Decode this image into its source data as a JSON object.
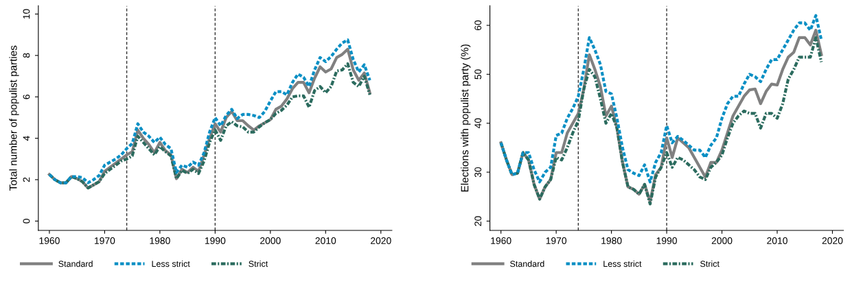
{
  "chart_data": [
    {
      "type": "line",
      "ylabel": "Total number of populist parties",
      "x": [
        1960,
        1961,
        1962,
        1963,
        1964,
        1965,
        1966,
        1967,
        1968,
        1969,
        1970,
        1971,
        1972,
        1973,
        1974,
        1975,
        1976,
        1977,
        1978,
        1979,
        1980,
        1981,
        1982,
        1983,
        1984,
        1985,
        1986,
        1987,
        1988,
        1989,
        1990,
        1991,
        1992,
        1993,
        1994,
        1995,
        1996,
        1997,
        1998,
        1999,
        2000,
        2001,
        2002,
        2003,
        2004,
        2005,
        2006,
        2007,
        2008,
        2009,
        2010,
        2011,
        2012,
        2013,
        2014,
        2015,
        2016,
        2017,
        2018
      ],
      "xlim": [
        1958,
        2022
      ],
      "xticks": [
        1960,
        1970,
        1980,
        1990,
        2000,
        2010,
        2020
      ],
      "ylim": [
        -0.45,
        10.4
      ],
      "yticks": [
        0,
        2,
        4,
        6,
        8,
        10
      ],
      "grid": false,
      "legend": "bottom left",
      "ref_lines": [
        {
          "axis": "x",
          "value": 1974,
          "color": "#333333",
          "line_style": "dashed"
        },
        {
          "axis": "x",
          "value": 1990,
          "color": "#333333",
          "line_style": "dashed"
        }
      ],
      "series": [
        {
          "name": "Standard",
          "color": "#808080",
          "line_style": "solid",
          "values": [
            2.25,
            2.0,
            1.85,
            1.85,
            2.15,
            2.05,
            1.9,
            1.6,
            1.75,
            1.9,
            2.4,
            2.6,
            2.8,
            3.0,
            3.2,
            3.35,
            4.4,
            4.0,
            3.7,
            3.3,
            3.8,
            3.4,
            3.2,
            2.05,
            2.5,
            2.35,
            2.6,
            2.4,
            3.2,
            4.0,
            4.7,
            4.3,
            5.0,
            5.3,
            4.85,
            4.85,
            4.6,
            4.4,
            4.6,
            4.75,
            4.9,
            5.4,
            5.55,
            5.9,
            6.4,
            6.7,
            6.7,
            6.2,
            6.9,
            7.45,
            7.2,
            7.35,
            7.9,
            8.05,
            8.3,
            7.3,
            6.8,
            7.15,
            6.2
          ]
        },
        {
          "name": "Less strict",
          "color": "#0a8fc4",
          "line_style": "dashed",
          "values": [
            2.25,
            2.0,
            1.85,
            1.85,
            2.15,
            2.15,
            2.1,
            1.85,
            2.0,
            2.2,
            2.7,
            2.85,
            3.0,
            3.2,
            3.5,
            3.75,
            4.7,
            4.3,
            4.1,
            3.8,
            4.05,
            3.7,
            3.5,
            2.35,
            2.7,
            2.6,
            2.85,
            2.7,
            3.3,
            4.3,
            5.0,
            4.6,
            5.1,
            5.4,
            4.95,
            5.15,
            5.15,
            5.1,
            5.0,
            5.3,
            5.8,
            6.25,
            6.25,
            6.1,
            6.7,
            7.1,
            6.95,
            6.5,
            7.3,
            7.9,
            7.7,
            7.95,
            8.3,
            8.6,
            8.75,
            7.8,
            7.2,
            7.55,
            6.8
          ]
        },
        {
          "name": "Strict",
          "color": "#2b6b5e",
          "line_style": "dashdot",
          "values": [
            2.25,
            2.0,
            1.85,
            1.85,
            2.15,
            2.05,
            1.9,
            1.6,
            1.75,
            1.9,
            2.3,
            2.5,
            2.7,
            2.9,
            3.0,
            3.15,
            4.1,
            3.8,
            3.5,
            3.2,
            3.6,
            3.35,
            3.15,
            2.05,
            2.45,
            2.3,
            2.5,
            2.3,
            2.9,
            3.8,
            4.4,
            3.9,
            4.6,
            4.8,
            4.6,
            4.55,
            4.3,
            4.3,
            4.55,
            4.75,
            4.9,
            5.2,
            5.35,
            5.6,
            6.0,
            6.05,
            6.05,
            5.5,
            6.3,
            6.5,
            6.2,
            6.5,
            7.25,
            7.3,
            7.6,
            6.7,
            6.5,
            7.0,
            6.1
          ]
        }
      ]
    },
    {
      "type": "line",
      "ylabel": "Elections with populist party (%)",
      "x": [
        1960,
        1961,
        1962,
        1963,
        1964,
        1965,
        1966,
        1967,
        1968,
        1969,
        1970,
        1971,
        1972,
        1973,
        1974,
        1975,
        1976,
        1977,
        1978,
        1979,
        1980,
        1981,
        1982,
        1983,
        1984,
        1985,
        1986,
        1987,
        1988,
        1989,
        1990,
        1991,
        1992,
        1993,
        1994,
        1995,
        1996,
        1997,
        1998,
        1999,
        2000,
        2001,
        2002,
        2003,
        2004,
        2005,
        2006,
        2007,
        2008,
        2009,
        2010,
        2011,
        2012,
        2013,
        2014,
        2015,
        2016,
        2017,
        2018
      ],
      "xlim": [
        1958,
        2022
      ],
      "xticks": [
        1960,
        1970,
        1980,
        1990,
        2000,
        2010,
        2020
      ],
      "ylim": [
        18.1,
        64
      ],
      "yticks": [
        20,
        30,
        40,
        50,
        60
      ],
      "grid": false,
      "legend": "bottom left",
      "ref_lines": [
        {
          "axis": "x",
          "value": 1974,
          "color": "#333333",
          "line_style": "dashed"
        },
        {
          "axis": "x",
          "value": 1990,
          "color": "#333333",
          "line_style": "dashed"
        }
      ],
      "series": [
        {
          "name": "Standard",
          "color": "#808080",
          "line_style": "solid",
          "values": [
            36,
            32.5,
            29.5,
            29.8,
            34,
            32.5,
            27.5,
            24.5,
            27,
            28.5,
            34,
            34,
            38,
            40,
            42,
            47,
            54,
            51,
            47.5,
            41.5,
            43.5,
            39,
            32,
            27,
            26.5,
            25.5,
            27.5,
            24,
            29.5,
            31,
            37,
            33,
            37,
            36,
            35,
            33,
            31,
            29,
            32,
            32,
            34.5,
            38,
            41.5,
            43.5,
            45.5,
            46.8,
            47,
            44,
            46.5,
            48,
            47.8,
            51,
            53.5,
            54.5,
            57.5,
            57.5,
            56,
            59,
            54
          ]
        },
        {
          "name": "Less strict",
          "color": "#0a8fc4",
          "line_style": "dashed",
          "values": [
            36,
            32.5,
            29.5,
            29.8,
            34,
            34,
            30.5,
            28,
            30,
            31,
            37.5,
            38,
            41,
            43,
            45.5,
            51,
            57.5,
            55,
            52,
            46.5,
            46,
            41,
            35,
            30.5,
            29.8,
            29.3,
            31.5,
            28,
            32,
            34,
            39.5,
            36,
            37.3,
            36.5,
            35.5,
            34.5,
            34.5,
            33,
            35.5,
            37,
            41,
            44,
            45.5,
            45.5,
            48,
            50,
            49.5,
            48.5,
            51,
            53,
            53,
            55,
            57,
            59,
            60.5,
            60.5,
            59,
            62,
            57
          ]
        },
        {
          "name": "Strict",
          "color": "#2b6b5e",
          "line_style": "dashdot",
          "values": [
            36,
            32.5,
            29.5,
            29.8,
            34,
            32.5,
            27.5,
            24.5,
            27,
            28.5,
            33,
            32.5,
            35,
            38,
            40.5,
            47,
            51,
            49.5,
            45,
            40,
            42,
            39,
            32,
            27,
            26.5,
            25.5,
            27.5,
            23.5,
            29,
            31,
            34,
            31,
            33,
            32.5,
            31.5,
            30.5,
            29,
            28.5,
            31,
            32,
            33.5,
            37,
            40,
            41.5,
            42.5,
            42,
            42,
            39,
            42,
            42,
            41,
            44,
            49,
            51,
            53.5,
            53.5,
            53.5,
            57.5,
            52.5
          ]
        }
      ]
    }
  ]
}
